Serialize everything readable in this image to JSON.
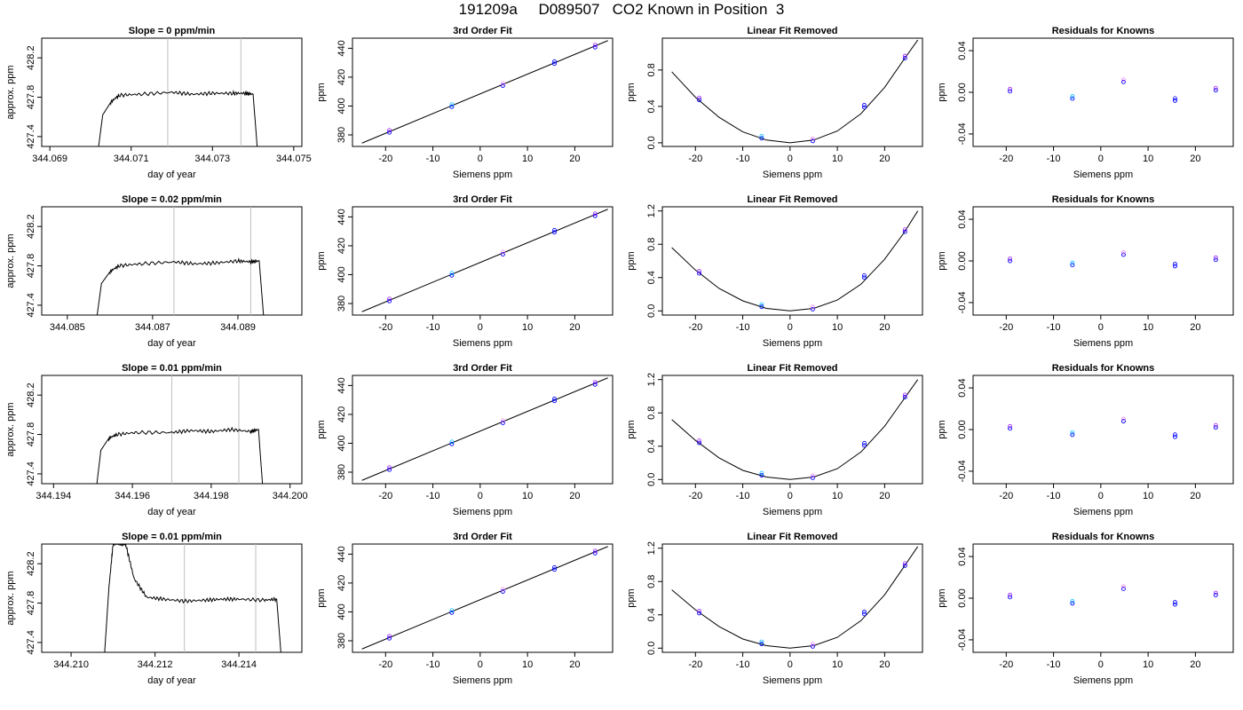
{
  "page_title": "191209a     D089507   CO2 Known in Position  3",
  "colors": {
    "line": "#000000",
    "marker_blue": "#0000ff",
    "marker_purple": "#a020f0",
    "marker_red": "#ff0000",
    "marker_cyan": "#00bfff",
    "marker_orange": "#ffa500",
    "marker_violet": "#ee82ee",
    "vline": "#bebebe"
  },
  "chart_data": [
    {
      "type": "line",
      "title": "Slope =  0  ppm/min",
      "xlabel": "day of year",
      "ylabel": "approx. ppm",
      "x_ticks": [
        "344.069",
        "344.071",
        "344.073",
        "344.075"
      ],
      "x_tick_values": [
        344.069,
        344.071,
        344.073,
        344.075
      ],
      "y_ticks": [
        "427.4",
        "427.8",
        "428.2"
      ],
      "y_tick_values": [
        427.4,
        427.8,
        428.2
      ],
      "xlim": [
        344.0688,
        344.0752
      ],
      "ylim": [
        427.3,
        428.4
      ],
      "vlines": [
        344.0719,
        344.0737
      ],
      "trace": {
        "x": [
          344.0702,
          344.0703,
          344.0705,
          344.0707,
          344.0712,
          344.072,
          344.0725,
          344.073,
          344.0735,
          344.0738,
          344.074,
          344.0741
        ],
        "y": [
          427.3,
          427.62,
          427.75,
          427.82,
          427.83,
          427.85,
          427.83,
          427.84,
          427.84,
          427.84,
          427.83,
          427.3
        ]
      }
    },
    {
      "type": "line",
      "title": "3rd Order Fit",
      "xlabel": "Siemens ppm",
      "ylabel": "ppm",
      "x_ticks": [
        "-20",
        "-10",
        "0",
        "10",
        "20"
      ],
      "x_tick_values": [
        -20,
        -10,
        0,
        10,
        20
      ],
      "y_ticks": [
        "380",
        "400",
        "420",
        "440"
      ],
      "y_tick_values": [
        380,
        400,
        420,
        440
      ],
      "xlim": [
        -27,
        28
      ],
      "ylim": [
        372,
        447
      ],
      "fit": {
        "x": [
          -25,
          27
        ],
        "y": [
          374.3,
          445.3
        ]
      },
      "points": {
        "x": [
          -19.2,
          -6.0,
          4.8,
          15.7,
          24.3
        ],
        "y": [
          381.7,
          399.5,
          414.1,
          429.3,
          440.7
        ]
      }
    },
    {
      "type": "scatter",
      "title": "Linear Fit Removed",
      "xlabel": "Siemens ppm",
      "ylabel": "ppm",
      "x_ticks": [
        "-20",
        "-10",
        "0",
        "10",
        "20"
      ],
      "x_tick_values": [
        -20,
        -10,
        0,
        10,
        20
      ],
      "y_ticks": [
        "0.0",
        "0.4",
        "0.8"
      ],
      "y_tick_values": [
        0.0,
        0.4,
        0.8
      ],
      "xlim": [
        -27,
        28
      ],
      "ylim": [
        -0.04,
        1.15
      ],
      "curve": {
        "x": [
          -25,
          -20,
          -15,
          -10,
          -5,
          0,
          5,
          10,
          15,
          20,
          24,
          27
        ],
        "y": [
          0.78,
          0.5,
          0.28,
          0.12,
          0.03,
          0.0,
          0.03,
          0.13,
          0.32,
          0.61,
          0.91,
          1.13
        ]
      },
      "points": {
        "x": [
          -19.2,
          -6.0,
          4.8,
          15.7,
          24.3
        ],
        "y": [
          0.47,
          0.05,
          0.02,
          0.39,
          0.93
        ]
      }
    },
    {
      "type": "scatter",
      "title": "Residuals for Knowns",
      "xlabel": "Siemens ppm",
      "ylabel": "ppm",
      "x_ticks": [
        "-20",
        "-10",
        "0",
        "10",
        "20"
      ],
      "x_tick_values": [
        -20,
        -10,
        0,
        10,
        20
      ],
      "y_ticks": [
        "-0.04",
        "0.00",
        "0.04"
      ],
      "y_tick_values": [
        -0.04,
        0.0,
        0.04
      ],
      "xlim": [
        -27,
        28
      ],
      "ylim": [
        -0.052,
        0.052
      ],
      "points": {
        "x": [
          -19.2,
          -6.0,
          4.8,
          15.7,
          24.3
        ],
        "y": [
          0.001,
          -0.006,
          0.01,
          -0.008,
          0.002
        ]
      }
    },
    {
      "type": "line",
      "title": "Slope =  0.02  ppm/min",
      "xlabel": "day of year",
      "ylabel": "approx. ppm",
      "x_ticks": [
        "344.085",
        "344.087",
        "344.089"
      ],
      "x_tick_values": [
        344.085,
        344.087,
        344.089
      ],
      "y_ticks": [
        "427.4",
        "427.8",
        "428.2"
      ],
      "y_tick_values": [
        427.4,
        427.8,
        428.2
      ],
      "xlim": [
        344.0844,
        344.0905
      ],
      "ylim": [
        427.3,
        428.4
      ],
      "vlines": [
        344.0875,
        344.0893
      ],
      "trace": {
        "x": [
          344.0857,
          344.0858,
          344.086,
          344.0862,
          344.0867,
          344.0875,
          344.088,
          344.0885,
          344.089,
          344.0893,
          344.0895,
          344.0896
        ],
        "y": [
          427.3,
          427.62,
          427.74,
          427.8,
          427.82,
          427.84,
          427.82,
          427.83,
          427.85,
          427.84,
          427.85,
          427.3
        ]
      }
    },
    {
      "type": "line",
      "title": "3rd Order Fit",
      "xlabel": "Siemens ppm",
      "ylabel": "ppm",
      "x_ticks": [
        "-20",
        "-10",
        "0",
        "10",
        "20"
      ],
      "x_tick_values": [
        -20,
        -10,
        0,
        10,
        20
      ],
      "y_ticks": [
        "380",
        "400",
        "420",
        "440"
      ],
      "y_tick_values": [
        380,
        400,
        420,
        440
      ],
      "xlim": [
        -27,
        28
      ],
      "ylim": [
        372,
        447
      ],
      "fit": {
        "x": [
          -25,
          27
        ],
        "y": [
          374.3,
          445.3
        ]
      },
      "points": {
        "x": [
          -19.2,
          -6.0,
          4.8,
          15.7,
          24.3
        ],
        "y": [
          381.7,
          399.5,
          414.1,
          429.3,
          440.7
        ]
      }
    },
    {
      "type": "scatter",
      "title": "Linear Fit Removed",
      "xlabel": "Siemens ppm",
      "ylabel": "ppm",
      "x_ticks": [
        "-20",
        "-10",
        "0",
        "10",
        "20"
      ],
      "x_tick_values": [
        -20,
        -10,
        0,
        10,
        20
      ],
      "y_ticks": [
        "0.0",
        "0.4",
        "0.8",
        "1.2"
      ],
      "y_tick_values": [
        0.0,
        0.4,
        0.8,
        1.2
      ],
      "xlim": [
        -27,
        28
      ],
      "ylim": [
        -0.05,
        1.25
      ],
      "curve": {
        "x": [
          -25,
          -20,
          -15,
          -10,
          -5,
          0,
          5,
          10,
          15,
          20,
          24,
          27
        ],
        "y": [
          0.76,
          0.49,
          0.27,
          0.12,
          0.03,
          0.0,
          0.03,
          0.13,
          0.32,
          0.62,
          0.93,
          1.2
        ]
      },
      "points": {
        "x": [
          -19.2,
          -6.0,
          4.8,
          15.7,
          24.3
        ],
        "y": [
          0.45,
          0.05,
          0.02,
          0.4,
          0.95
        ]
      }
    },
    {
      "type": "scatter",
      "title": "Residuals for Knowns",
      "xlabel": "Siemens ppm",
      "ylabel": "ppm",
      "x_ticks": [
        "-20",
        "-10",
        "0",
        "10",
        "20"
      ],
      "x_tick_values": [
        -20,
        -10,
        0,
        10,
        20
      ],
      "y_ticks": [
        "-0.04",
        "0.00",
        "0.04"
      ],
      "y_tick_values": [
        -0.04,
        0.0,
        0.04
      ],
      "xlim": [
        -27,
        28
      ],
      "ylim": [
        -0.052,
        0.052
      ],
      "points": {
        "x": [
          -19.2,
          -6.0,
          4.8,
          15.7,
          24.3
        ],
        "y": [
          0.0,
          -0.004,
          0.006,
          -0.005,
          0.001
        ]
      }
    },
    {
      "type": "line",
      "title": "Slope =  0.01  ppm/min",
      "xlabel": "day of year",
      "ylabel": "approx. ppm",
      "x_ticks": [
        "344.194",
        "344.196",
        "344.198",
        "344.200"
      ],
      "x_tick_values": [
        344.194,
        344.196,
        344.198,
        344.2
      ],
      "y_ticks": [
        "427.4",
        "427.8",
        "428.2"
      ],
      "y_tick_values": [
        427.4,
        427.8,
        428.2
      ],
      "xlim": [
        344.1937,
        344.2003
      ],
      "ylim": [
        427.3,
        428.4
      ],
      "vlines": [
        344.197,
        344.1987
      ],
      "trace": {
        "x": [
          344.1951,
          344.1952,
          344.1954,
          344.1956,
          344.1961,
          344.197,
          344.1975,
          344.198,
          344.1985,
          344.199,
          344.1992,
          344.1993
        ],
        "y": [
          427.3,
          427.64,
          427.76,
          427.8,
          427.82,
          427.82,
          427.84,
          427.83,
          427.85,
          427.83,
          427.85,
          427.3
        ]
      }
    },
    {
      "type": "line",
      "title": "3rd Order Fit",
      "xlabel": "Siemens ppm",
      "ylabel": "ppm",
      "x_ticks": [
        "-20",
        "-10",
        "0",
        "10",
        "20"
      ],
      "x_tick_values": [
        -20,
        -10,
        0,
        10,
        20
      ],
      "y_ticks": [
        "380",
        "400",
        "420",
        "440"
      ],
      "y_tick_values": [
        380,
        400,
        420,
        440
      ],
      "xlim": [
        -27,
        28
      ],
      "ylim": [
        372,
        447
      ],
      "fit": {
        "x": [
          -25,
          27
        ],
        "y": [
          374.3,
          445.3
        ]
      },
      "points": {
        "x": [
          -19.2,
          -6.0,
          4.8,
          15.7,
          24.3
        ],
        "y": [
          381.7,
          399.5,
          414.1,
          429.3,
          440.7
        ]
      }
    },
    {
      "type": "scatter",
      "title": "Linear Fit Removed",
      "xlabel": "Siemens ppm",
      "ylabel": "ppm",
      "x_ticks": [
        "-20",
        "-10",
        "0",
        "10",
        "20"
      ],
      "x_tick_values": [
        -20,
        -10,
        0,
        10,
        20
      ],
      "y_ticks": [
        "0.0",
        "0.4",
        "0.8",
        "1.2"
      ],
      "y_tick_values": [
        0.0,
        0.4,
        0.8,
        1.2
      ],
      "xlim": [
        -27,
        28
      ],
      "ylim": [
        -0.05,
        1.25
      ],
      "curve": {
        "x": [
          -25,
          -20,
          -15,
          -10,
          -5,
          0,
          5,
          10,
          15,
          20,
          24,
          27
        ],
        "y": [
          0.72,
          0.47,
          0.26,
          0.11,
          0.03,
          0.0,
          0.03,
          0.13,
          0.33,
          0.64,
          0.96,
          1.2
        ]
      },
      "points": {
        "x": [
          -19.2,
          -6.0,
          4.8,
          15.7,
          24.3
        ],
        "y": [
          0.44,
          0.05,
          0.02,
          0.41,
          0.99
        ]
      }
    },
    {
      "type": "scatter",
      "title": "Residuals for Knowns",
      "xlabel": "Siemens ppm",
      "ylabel": "ppm",
      "x_ticks": [
        "-20",
        "-10",
        "0",
        "10",
        "20"
      ],
      "x_tick_values": [
        -20,
        -10,
        0,
        10,
        20
      ],
      "y_ticks": [
        "-0.04",
        "0.00",
        "0.04"
      ],
      "y_tick_values": [
        -0.04,
        0.0,
        0.04
      ],
      "xlim": [
        -27,
        28
      ],
      "ylim": [
        -0.052,
        0.052
      ],
      "points": {
        "x": [
          -19.2,
          -6.0,
          4.8,
          15.7,
          24.3
        ],
        "y": [
          0.001,
          -0.005,
          0.008,
          -0.007,
          0.002
        ]
      }
    },
    {
      "type": "line",
      "title": "Slope =  0.01  ppm/min",
      "xlabel": "day of year",
      "ylabel": "approx. ppm",
      "x_ticks": [
        "344.210",
        "344.212",
        "344.214"
      ],
      "x_tick_values": [
        344.21,
        344.212,
        344.214
      ],
      "y_ticks": [
        "427.4",
        "427.8",
        "428.2"
      ],
      "y_tick_values": [
        427.4,
        427.8,
        428.2
      ],
      "xlim": [
        344.2093,
        344.2155
      ],
      "ylim": [
        427.3,
        428.4
      ],
      "vlines": [
        344.2127,
        344.2144
      ],
      "trace": {
        "x": [
          344.2108,
          344.2109,
          344.211,
          344.2112,
          344.2113,
          344.2115,
          344.2118,
          344.2122,
          344.2127,
          344.2132,
          344.2136,
          344.214,
          344.2146,
          344.2149,
          344.215
        ],
        "y": [
          427.3,
          427.95,
          428.4,
          428.4,
          428.4,
          428.05,
          427.86,
          427.84,
          427.82,
          427.83,
          427.84,
          427.84,
          427.83,
          427.84,
          427.3
        ]
      }
    },
    {
      "type": "line",
      "title": "3rd Order Fit",
      "xlabel": "Siemens ppm",
      "ylabel": "ppm",
      "x_ticks": [
        "-20",
        "-10",
        "0",
        "10",
        "20"
      ],
      "x_tick_values": [
        -20,
        -10,
        0,
        10,
        20
      ],
      "y_ticks": [
        "380",
        "400",
        "420",
        "440"
      ],
      "y_tick_values": [
        380,
        400,
        420,
        440
      ],
      "xlim": [
        -27,
        28
      ],
      "ylim": [
        372,
        447
      ],
      "fit": {
        "x": [
          -25,
          27
        ],
        "y": [
          374.3,
          445.3
        ]
      },
      "points": {
        "x": [
          -19.2,
          -6.0,
          4.8,
          15.7,
          24.3
        ],
        "y": [
          381.7,
          399.5,
          414.1,
          429.3,
          440.7
        ]
      }
    },
    {
      "type": "scatter",
      "title": "Linear Fit Removed",
      "xlabel": "Siemens ppm",
      "ylabel": "ppm",
      "x_ticks": [
        "-20",
        "-10",
        "0",
        "10",
        "20"
      ],
      "x_tick_values": [
        -20,
        -10,
        0,
        10,
        20
      ],
      "y_ticks": [
        "0.0",
        "0.4",
        "0.8",
        "1.2"
      ],
      "y_tick_values": [
        0.0,
        0.4,
        0.8,
        1.2
      ],
      "xlim": [
        -27,
        28
      ],
      "ylim": [
        -0.05,
        1.25
      ],
      "curve": {
        "x": [
          -25,
          -20,
          -15,
          -10,
          -5,
          0,
          5,
          10,
          15,
          20,
          24,
          27
        ],
        "y": [
          0.7,
          0.46,
          0.26,
          0.11,
          0.03,
          0.0,
          0.03,
          0.13,
          0.33,
          0.64,
          0.97,
          1.22
        ]
      },
      "points": {
        "x": [
          -19.2,
          -6.0,
          4.8,
          15.7,
          24.3
        ],
        "y": [
          0.42,
          0.05,
          0.02,
          0.41,
          0.99
        ]
      }
    },
    {
      "type": "scatter",
      "title": "Residuals for Knowns",
      "xlabel": "Siemens ppm",
      "ylabel": "ppm",
      "x_ticks": [
        "-20",
        "-10",
        "0",
        "10",
        "20"
      ],
      "x_tick_values": [
        -20,
        -10,
        0,
        10,
        20
      ],
      "y_ticks": [
        "-0.04",
        "0.00",
        "0.04"
      ],
      "y_tick_values": [
        -0.04,
        0.0,
        0.04
      ],
      "xlim": [
        -27,
        28
      ],
      "ylim": [
        -0.052,
        0.052
      ],
      "points": {
        "x": [
          -19.2,
          -6.0,
          4.8,
          15.7,
          24.3
        ],
        "y": [
          0.001,
          -0.005,
          0.009,
          -0.006,
          0.003
        ]
      }
    }
  ]
}
